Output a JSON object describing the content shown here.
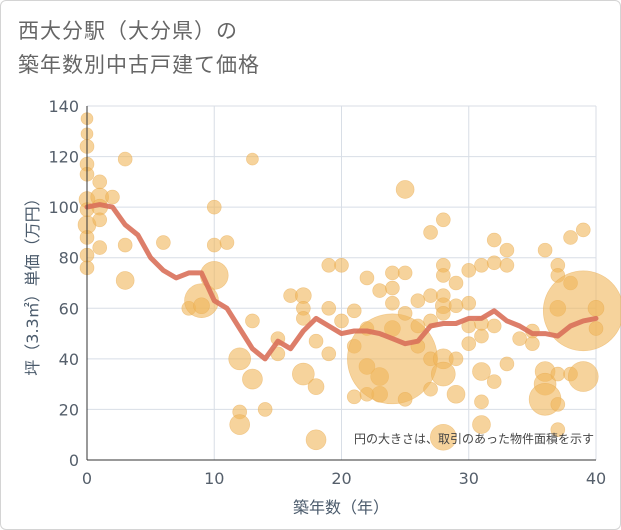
{
  "title": "西大分駅（大分県）の\n築年数別中古戸建て価格",
  "chart_data": {
    "type": "scatter",
    "xlabel": "築年数（年）",
    "ylabel": "坪（3.3㎡）単価（万円）",
    "note": "円の大きさは、取引のあった物件面積を示す",
    "xlim": [
      0,
      40
    ],
    "ylim": [
      0,
      140
    ],
    "x_ticks": [
      0,
      10,
      20,
      30,
      40
    ],
    "y_ticks": [
      0,
      20,
      40,
      60,
      80,
      100,
      120,
      140
    ],
    "grid": true,
    "colors": {
      "bubble": "#f0b55a",
      "line": "#d9705a",
      "grid": "#d8dee6"
    },
    "bubbles": [
      {
        "x": 0,
        "y": 135,
        "s": 6
      },
      {
        "x": 0,
        "y": 129,
        "s": 6
      },
      {
        "x": 0,
        "y": 124,
        "s": 7
      },
      {
        "x": 0,
        "y": 117,
        "s": 7
      },
      {
        "x": 0,
        "y": 113,
        "s": 7
      },
      {
        "x": 0,
        "y": 103,
        "s": 8
      },
      {
        "x": 0,
        "y": 99,
        "s": 7
      },
      {
        "x": 0,
        "y": 93,
        "s": 9
      },
      {
        "x": 0,
        "y": 88,
        "s": 7
      },
      {
        "x": 0,
        "y": 81,
        "s": 7
      },
      {
        "x": 0,
        "y": 76,
        "s": 7
      },
      {
        "x": 1,
        "y": 110,
        "s": 7
      },
      {
        "x": 1,
        "y": 104,
        "s": 9
      },
      {
        "x": 1,
        "y": 100,
        "s": 8
      },
      {
        "x": 1,
        "y": 95,
        "s": 7
      },
      {
        "x": 1,
        "y": 84,
        "s": 7
      },
      {
        "x": 2,
        "y": 104,
        "s": 7
      },
      {
        "x": 3,
        "y": 119,
        "s": 7
      },
      {
        "x": 3,
        "y": 85,
        "s": 7
      },
      {
        "x": 3,
        "y": 71,
        "s": 9
      },
      {
        "x": 6,
        "y": 86,
        "s": 7
      },
      {
        "x": 8,
        "y": 60,
        "s": 7
      },
      {
        "x": 9,
        "y": 63,
        "s": 17
      },
      {
        "x": 9,
        "y": 61,
        "s": 8
      },
      {
        "x": 10,
        "y": 100,
        "s": 7
      },
      {
        "x": 10,
        "y": 85,
        "s": 7
      },
      {
        "x": 10,
        "y": 73,
        "s": 14
      },
      {
        "x": 11,
        "y": 86,
        "s": 7
      },
      {
        "x": 12,
        "y": 40,
        "s": 11
      },
      {
        "x": 12,
        "y": 19,
        "s": 7
      },
      {
        "x": 12,
        "y": 14,
        "s": 10
      },
      {
        "x": 13,
        "y": 119,
        "s": 6
      },
      {
        "x": 13,
        "y": 55,
        "s": 7
      },
      {
        "x": 13,
        "y": 32,
        "s": 10
      },
      {
        "x": 14,
        "y": 20,
        "s": 7
      },
      {
        "x": 15,
        "y": 48,
        "s": 7
      },
      {
        "x": 15,
        "y": 42,
        "s": 7
      },
      {
        "x": 16,
        "y": 65,
        "s": 7
      },
      {
        "x": 17,
        "y": 65,
        "s": 8
      },
      {
        "x": 17,
        "y": 60,
        "s": 7
      },
      {
        "x": 17,
        "y": 56,
        "s": 7
      },
      {
        "x": 17,
        "y": 34,
        "s": 11
      },
      {
        "x": 18,
        "y": 47,
        "s": 7
      },
      {
        "x": 18,
        "y": 29,
        "s": 8
      },
      {
        "x": 18,
        "y": 8,
        "s": 10
      },
      {
        "x": 19,
        "y": 77,
        "s": 7
      },
      {
        "x": 19,
        "y": 60,
        "s": 7
      },
      {
        "x": 19,
        "y": 42,
        "s": 7
      },
      {
        "x": 20,
        "y": 77,
        "s": 7
      },
      {
        "x": 20,
        "y": 55,
        "s": 7
      },
      {
        "x": 21,
        "y": 59,
        "s": 7
      },
      {
        "x": 21,
        "y": 45,
        "s": 7
      },
      {
        "x": 21,
        "y": 25,
        "s": 7
      },
      {
        "x": 22,
        "y": 72,
        "s": 7
      },
      {
        "x": 22,
        "y": 52,
        "s": 7
      },
      {
        "x": 22,
        "y": 37,
        "s": 8
      },
      {
        "x": 22,
        "y": 26,
        "s": 7
      },
      {
        "x": 23,
        "y": 67,
        "s": 7
      },
      {
        "x": 23,
        "y": 33,
        "s": 9
      },
      {
        "x": 23,
        "y": 26,
        "s": 8
      },
      {
        "x": 24,
        "y": 74,
        "s": 7
      },
      {
        "x": 24,
        "y": 68,
        "s": 7
      },
      {
        "x": 24,
        "y": 62,
        "s": 7
      },
      {
        "x": 24,
        "y": 52,
        "s": 8
      },
      {
        "x": 24,
        "y": 40,
        "s": 45
      },
      {
        "x": 25,
        "y": 107,
        "s": 9
      },
      {
        "x": 25,
        "y": 74,
        "s": 7
      },
      {
        "x": 25,
        "y": 58,
        "s": 7
      },
      {
        "x": 25,
        "y": 24,
        "s": 7
      },
      {
        "x": 26,
        "y": 63,
        "s": 7
      },
      {
        "x": 26,
        "y": 53,
        "s": 7
      },
      {
        "x": 26,
        "y": 45,
        "s": 7
      },
      {
        "x": 27,
        "y": 90,
        "s": 7
      },
      {
        "x": 27,
        "y": 65,
        "s": 7
      },
      {
        "x": 27,
        "y": 55,
        "s": 7
      },
      {
        "x": 27,
        "y": 40,
        "s": 7
      },
      {
        "x": 27,
        "y": 28,
        "s": 7
      },
      {
        "x": 28,
        "y": 95,
        "s": 7
      },
      {
        "x": 28,
        "y": 77,
        "s": 7
      },
      {
        "x": 28,
        "y": 73,
        "s": 7
      },
      {
        "x": 28,
        "y": 65,
        "s": 7
      },
      {
        "x": 28,
        "y": 61,
        "s": 8
      },
      {
        "x": 28,
        "y": 58,
        "s": 7
      },
      {
        "x": 28,
        "y": 40,
        "s": 10
      },
      {
        "x": 28,
        "y": 34,
        "s": 12
      },
      {
        "x": 28,
        "y": 9,
        "s": 13
      },
      {
        "x": 29,
        "y": 70,
        "s": 7
      },
      {
        "x": 29,
        "y": 61,
        "s": 7
      },
      {
        "x": 29,
        "y": 40,
        "s": 7
      },
      {
        "x": 29,
        "y": 26,
        "s": 9
      },
      {
        "x": 30,
        "y": 75,
        "s": 7
      },
      {
        "x": 30,
        "y": 62,
        "s": 7
      },
      {
        "x": 30,
        "y": 53,
        "s": 7
      },
      {
        "x": 30,
        "y": 46,
        "s": 7
      },
      {
        "x": 31,
        "y": 77,
        "s": 7
      },
      {
        "x": 31,
        "y": 54,
        "s": 7
      },
      {
        "x": 31,
        "y": 49,
        "s": 7
      },
      {
        "x": 31,
        "y": 35,
        "s": 9
      },
      {
        "x": 31,
        "y": 23,
        "s": 7
      },
      {
        "x": 31,
        "y": 14,
        "s": 9
      },
      {
        "x": 32,
        "y": 87,
        "s": 7
      },
      {
        "x": 32,
        "y": 78,
        "s": 7
      },
      {
        "x": 32,
        "y": 53,
        "s": 7
      },
      {
        "x": 32,
        "y": 31,
        "s": 7
      },
      {
        "x": 33,
        "y": 83,
        "s": 7
      },
      {
        "x": 33,
        "y": 77,
        "s": 7
      },
      {
        "x": 33,
        "y": 38,
        "s": 7
      },
      {
        "x": 34,
        "y": 48,
        "s": 7
      },
      {
        "x": 35,
        "y": 51,
        "s": 7
      },
      {
        "x": 35,
        "y": 46,
        "s": 7
      },
      {
        "x": 36,
        "y": 83,
        "s": 7
      },
      {
        "x": 36,
        "y": 35,
        "s": 10
      },
      {
        "x": 36,
        "y": 30,
        "s": 11
      },
      {
        "x": 36,
        "y": 24,
        "s": 16
      },
      {
        "x": 37,
        "y": 77,
        "s": 7
      },
      {
        "x": 37,
        "y": 73,
        "s": 7
      },
      {
        "x": 37,
        "y": 60,
        "s": 8
      },
      {
        "x": 37,
        "y": 34,
        "s": 7
      },
      {
        "x": 37,
        "y": 22,
        "s": 7
      },
      {
        "x": 37,
        "y": 12,
        "s": 7
      },
      {
        "x": 38,
        "y": 88,
        "s": 7
      },
      {
        "x": 38,
        "y": 70,
        "s": 7
      },
      {
        "x": 38,
        "y": 34,
        "s": 7
      },
      {
        "x": 39,
        "y": 91,
        "s": 7
      },
      {
        "x": 39,
        "y": 59,
        "s": 40
      },
      {
        "x": 39,
        "y": 33,
        "s": 15
      },
      {
        "x": 40,
        "y": 60,
        "s": 8
      },
      {
        "x": 40,
        "y": 52,
        "s": 7
      }
    ],
    "series": [
      {
        "x": [
          0,
          1,
          2,
          3,
          4,
          5,
          6,
          7,
          8,
          9,
          10,
          11,
          12,
          13,
          14,
          15,
          16,
          17,
          18,
          19,
          20,
          21,
          22,
          23,
          24,
          25,
          26,
          27,
          28,
          29,
          30,
          31,
          32,
          33,
          34,
          35,
          36,
          37,
          38,
          39,
          40
        ],
        "values": [
          100,
          101,
          100,
          93,
          89,
          80,
          75,
          72,
          74,
          74,
          63,
          60,
          52,
          44,
          40,
          47,
          44,
          51,
          56,
          53,
          50,
          51,
          51,
          50,
          48,
          46,
          47,
          53,
          54,
          54,
          56,
          56,
          59,
          55,
          53,
          50,
          50,
          49,
          53,
          55,
          56
        ]
      }
    ]
  }
}
